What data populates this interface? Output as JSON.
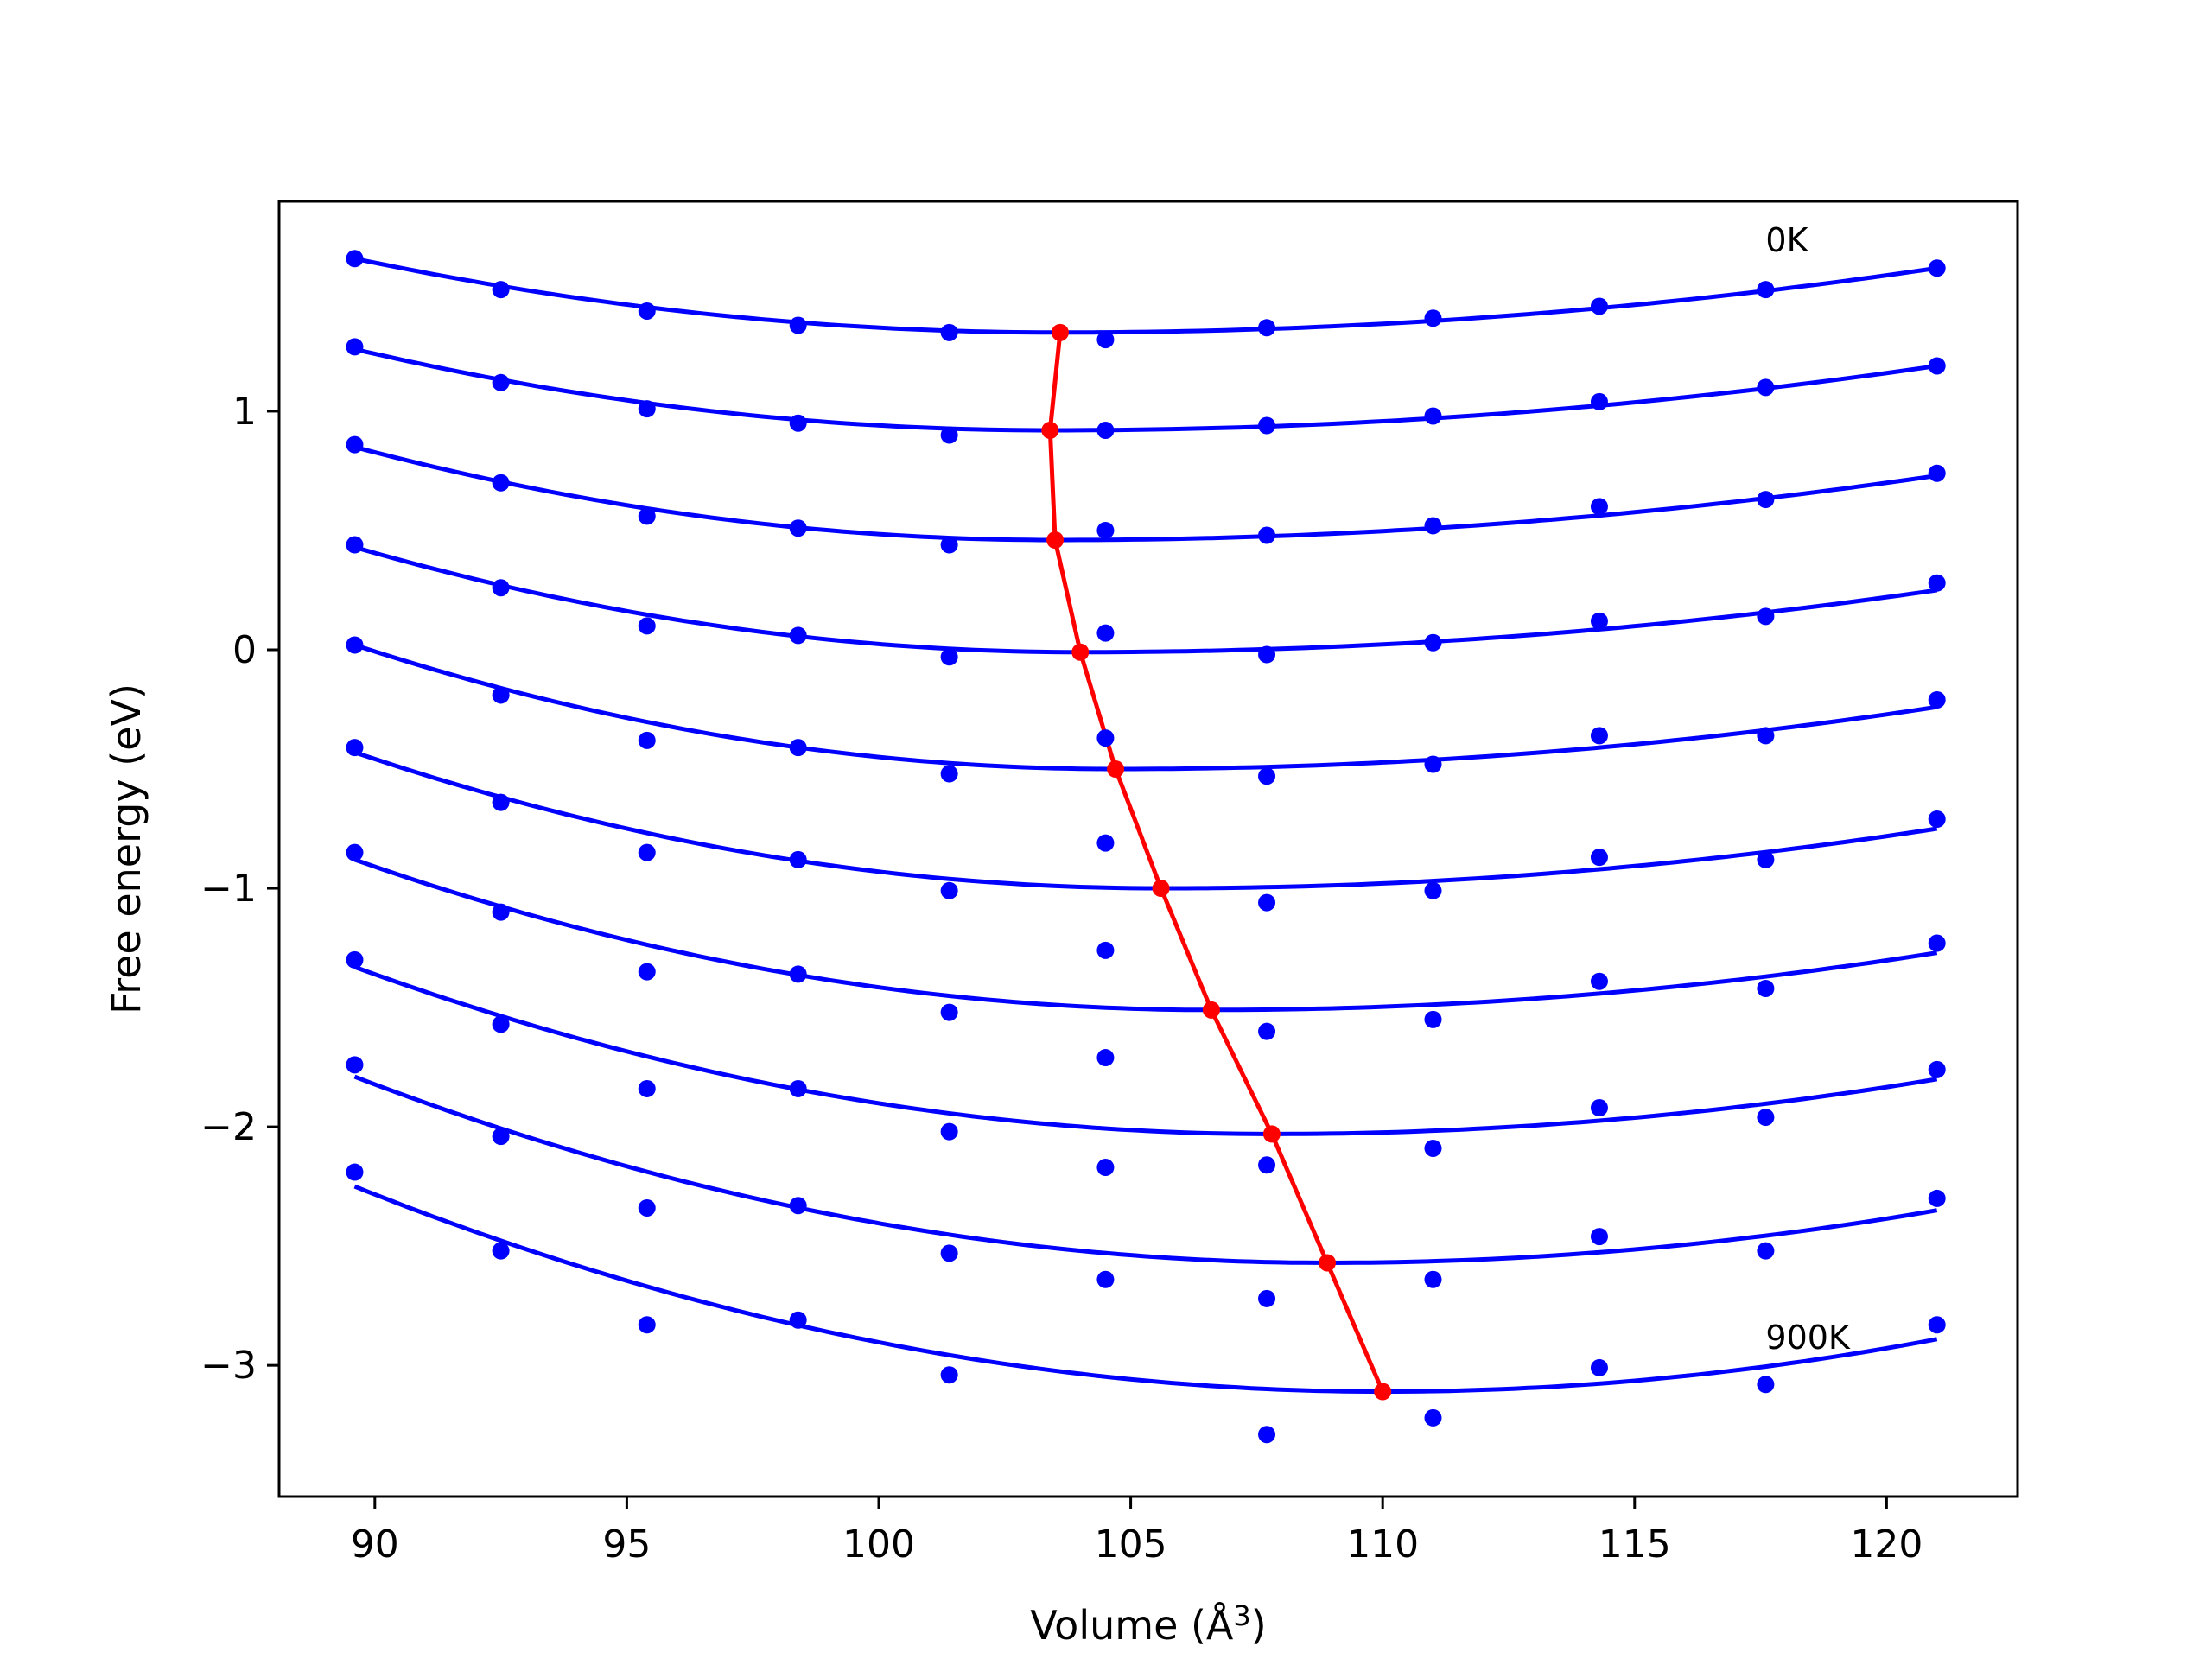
{
  "chart_data": {
    "type": "scatter",
    "title": "",
    "xlabel": "Volume (Å",
    "xlabel_sup": "3",
    "xlabel_close": ")",
    "ylabel": "Free energy (eV)",
    "xlim": [
      88.1,
      122.6
    ],
    "ylim": [
      -3.55,
      1.88
    ],
    "xticks": [
      90,
      95,
      100,
      105,
      110,
      115,
      120
    ],
    "xtick_labels": [
      "90",
      "95",
      "100",
      "105",
      "110",
      "115",
      "120"
    ],
    "yticks": [
      -3,
      -2,
      -1,
      0,
      1
    ],
    "ytick_labels": [
      "−3",
      "−2",
      "−1",
      "0",
      "1"
    ],
    "grid": false,
    "annotations": [
      {
        "text": "0K",
        "x": 117.6,
        "y": 1.67
      },
      {
        "text": "900K",
        "x": 117.6,
        "y": -2.93
      }
    ],
    "x": [
      89.6,
      92.5,
      95.4,
      98.4,
      101.4,
      104.5,
      107.7,
      111.0,
      114.3,
      117.6,
      121.0
    ],
    "fit_x_range": [
      89.6,
      121.0
    ],
    "series": [
      {
        "values": [
          1.64,
          1.51,
          1.42,
          1.36,
          1.33,
          1.3,
          1.35,
          1.39,
          1.44,
          1.51,
          1.6
        ]
      },
      {
        "values": [
          1.27,
          1.12,
          1.01,
          0.95,
          0.9,
          0.92,
          0.94,
          0.98,
          1.04,
          1.1,
          1.19
        ]
      },
      {
        "values": [
          0.86,
          0.7,
          0.56,
          0.51,
          0.44,
          0.5,
          0.48,
          0.52,
          0.6,
          0.63,
          0.74
        ]
      },
      {
        "values": [
          0.44,
          0.26,
          0.1,
          0.06,
          -0.03,
          0.07,
          -0.02,
          0.03,
          0.12,
          0.14,
          0.28
        ]
      },
      {
        "values": [
          0.02,
          -0.19,
          -0.38,
          -0.41,
          -0.52,
          -0.37,
          -0.53,
          -0.48,
          -0.36,
          -0.36,
          -0.21
        ]
      },
      {
        "values": [
          -0.41,
          -0.64,
          -0.85,
          -0.88,
          -1.01,
          -0.81,
          -1.06,
          -1.01,
          -0.87,
          -0.88,
          -0.71
        ]
      },
      {
        "values": [
          -0.85,
          -1.1,
          -1.35,
          -1.36,
          -1.52,
          -1.26,
          -1.6,
          -1.55,
          -1.39,
          -1.42,
          -1.23
        ]
      },
      {
        "values": [
          -1.3,
          -1.57,
          -1.84,
          -1.84,
          -2.02,
          -1.71,
          -2.16,
          -2.09,
          -1.92,
          -1.96,
          -1.76
        ]
      },
      {
        "values": [
          -1.74,
          -2.04,
          -2.34,
          -2.33,
          -2.53,
          -2.17,
          -2.72,
          -2.64,
          -2.46,
          -2.52,
          -2.3
        ]
      },
      {
        "values": [
          -2.19,
          -2.52,
          -2.83,
          -2.81,
          -3.04,
          -2.64,
          -3.29,
          -3.22,
          -3.01,
          -3.08,
          -2.83
        ]
      }
    ],
    "fits": [
      {
        "vmin": 103.6,
        "fmin": 1.33,
        "left": 1.64,
        "right": 1.6
      },
      {
        "vmin": 103.4,
        "fmin": 0.92,
        "left": 1.26,
        "right": 1.19
      },
      {
        "vmin": 103.5,
        "fmin": 0.46,
        "left": 0.85,
        "right": 0.73
      },
      {
        "vmin": 104.0,
        "fmin": -0.01,
        "left": 0.43,
        "right": 0.25
      },
      {
        "vmin": 104.7,
        "fmin": -0.5,
        "left": 0.02,
        "right": -0.24
      },
      {
        "vmin": 105.6,
        "fmin": -1.0,
        "left": -0.43,
        "right": -0.75
      },
      {
        "vmin": 106.6,
        "fmin": -1.51,
        "left": -0.88,
        "right": -1.27
      },
      {
        "vmin": 107.8,
        "fmin": -2.03,
        "left": -1.33,
        "right": -1.8
      },
      {
        "vmin": 108.9,
        "fmin": -2.57,
        "left": -1.79,
        "right": -2.35
      },
      {
        "vmin": 110.0,
        "fmin": -3.11,
        "left": -2.25,
        "right": -2.89
      }
    ],
    "equilibrium": {
      "x": [
        103.6,
        103.4,
        103.5,
        104.0,
        104.7,
        105.6,
        106.6,
        107.8,
        108.9,
        110.0
      ],
      "y": [
        1.33,
        0.92,
        0.46,
        -0.01,
        -0.5,
        -1.0,
        -1.51,
        -2.03,
        -2.57,
        -3.11
      ]
    },
    "colors": {
      "series": "#0000ff",
      "equilibrium": "#ff0000",
      "axes": "#000000"
    }
  }
}
